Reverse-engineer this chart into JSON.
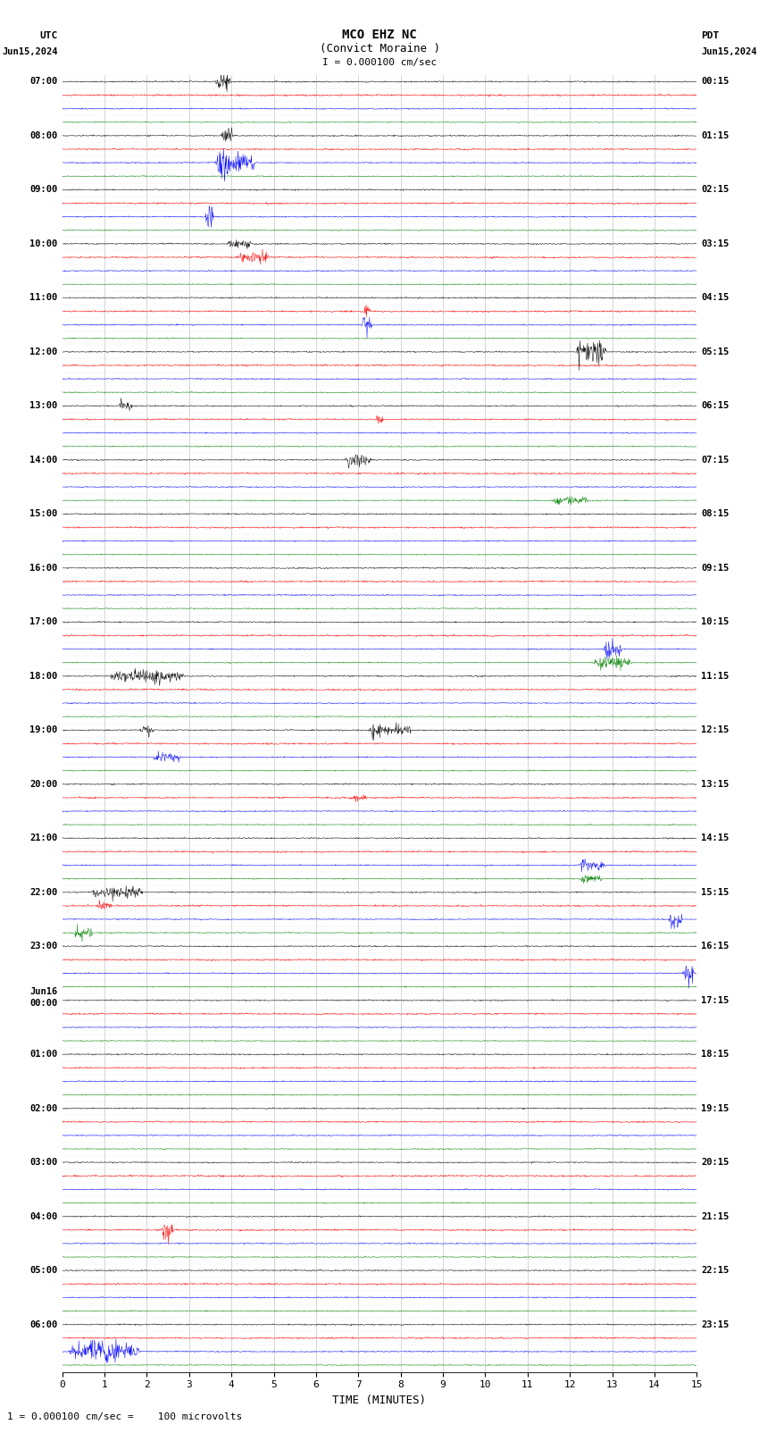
{
  "title_line1": "MCO EHZ NC",
  "title_line2": "(Convict Moraine )",
  "scale_label": "I = 0.000100 cm/sec",
  "left_header1": "UTC",
  "left_header2": "Jun15,2024",
  "right_header1": "PDT",
  "right_header2": "Jun15,2024",
  "bottom_label": "TIME (MINUTES)",
  "bottom_note": "1 = 0.000100 cm/sec =    100 microvolts",
  "colors": [
    "black",
    "red",
    "blue",
    "green"
  ],
  "n_hours": 24,
  "minutes": 15,
  "bg_color": "white",
  "left_times_utc": [
    "07:00",
    "08:00",
    "09:00",
    "10:00",
    "11:00",
    "12:00",
    "13:00",
    "14:00",
    "15:00",
    "16:00",
    "17:00",
    "18:00",
    "19:00",
    "20:00",
    "21:00",
    "22:00",
    "23:00",
    "Jun16",
    "00:00",
    "01:00",
    "02:00",
    "03:00",
    "04:00",
    "05:00",
    "06:00"
  ],
  "right_times_pdt": [
    "00:15",
    "01:15",
    "02:15",
    "03:15",
    "04:15",
    "05:15",
    "06:15",
    "07:15",
    "08:15",
    "09:15",
    "10:15",
    "11:15",
    "12:15",
    "13:15",
    "14:15",
    "15:15",
    "16:15",
    "17:15",
    "18:15",
    "19:15",
    "20:15",
    "21:15",
    "22:15",
    "23:15"
  ],
  "figsize": [
    8.5,
    16.13
  ],
  "dpi": 100
}
